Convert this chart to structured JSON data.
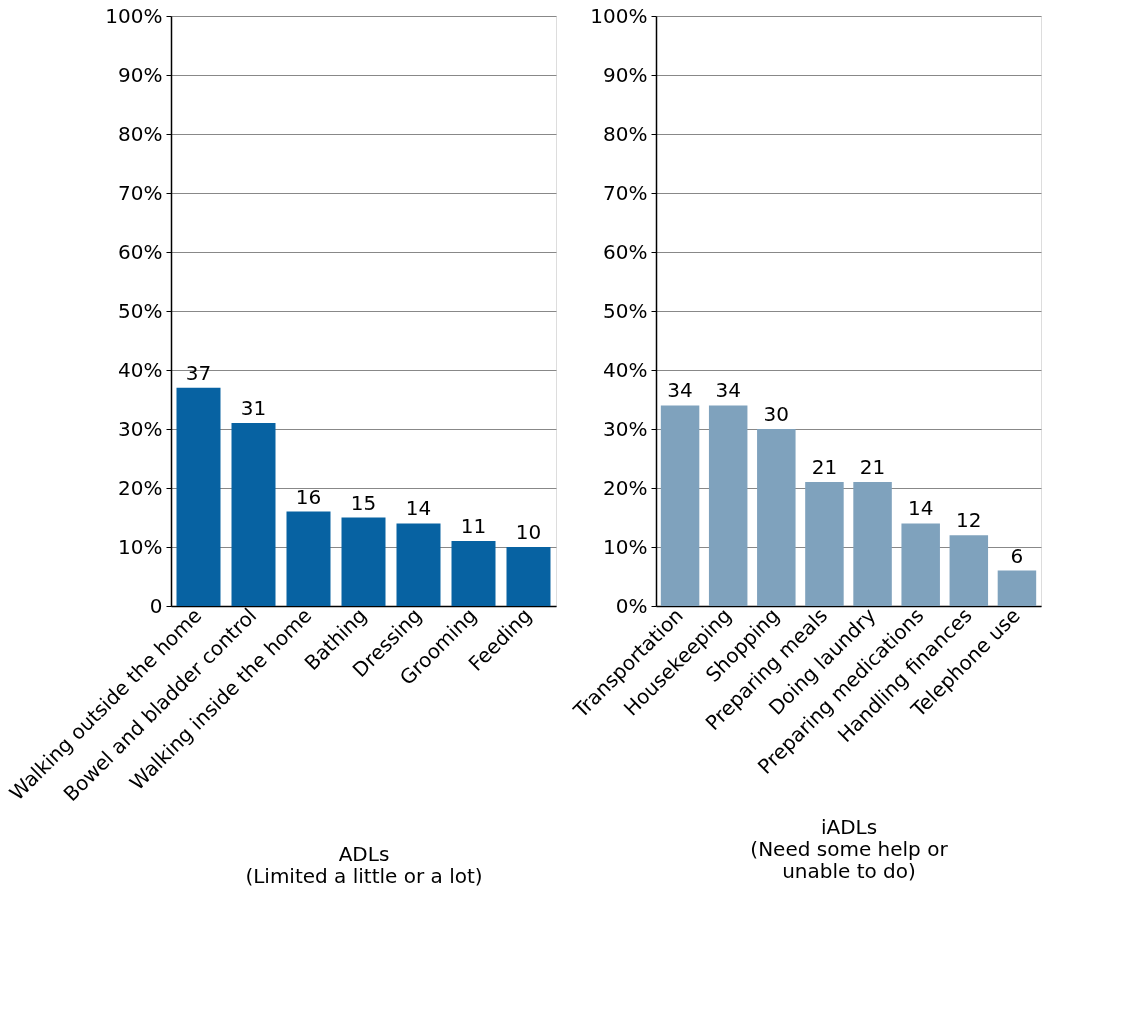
{
  "chart_data": [
    {
      "type": "bar",
      "xlabel": "ADLs\n(Limited a little or a lot)",
      "categories": [
        "Walking outside the home",
        "Bowel and bladder control",
        "Walking inside the home",
        "Bathing",
        "Dressing",
        "Grooming",
        "Feeding"
      ],
      "values": [
        37,
        31,
        16,
        15,
        14,
        11,
        10
      ],
      "color": "#0762a2",
      "ylim": [
        0,
        100
      ],
      "yticks": [
        {
          "value": 0,
          "label": "0"
        },
        {
          "value": 10,
          "label": "10%"
        },
        {
          "value": 20,
          "label": "20%"
        },
        {
          "value": 30,
          "label": "30%"
        },
        {
          "value": 40,
          "label": "40%"
        },
        {
          "value": 50,
          "label": "50%"
        },
        {
          "value": 60,
          "label": "60%"
        },
        {
          "value": 70,
          "label": "70%"
        },
        {
          "value": 80,
          "label": "80%"
        },
        {
          "value": 90,
          "label": "90%"
        },
        {
          "value": 100,
          "label": "100%"
        }
      ],
      "grid": "y",
      "data_labels": true
    },
    {
      "type": "bar",
      "xlabel": "iADLs\n(Need some help or\nunable to do)",
      "categories": [
        "Transportation",
        "Housekeeping",
        "Shopping",
        "Preparing meals",
        "Doing laundry",
        "Preparing medications",
        "Handling finances",
        "Telephone use"
      ],
      "values": [
        34,
        34,
        30,
        21,
        21,
        14,
        12,
        6
      ],
      "color": "#7fa2bd",
      "ylim": [
        0,
        100
      ],
      "yticks": [
        {
          "value": 0,
          "label": "0%"
        },
        {
          "value": 10,
          "label": "10%"
        },
        {
          "value": 20,
          "label": "20%"
        },
        {
          "value": 30,
          "label": "30%"
        },
        {
          "value": 40,
          "label": "40%"
        },
        {
          "value": 50,
          "label": "50%"
        },
        {
          "value": 60,
          "label": "60%"
        },
        {
          "value": 70,
          "label": "70%"
        },
        {
          "value": 80,
          "label": "80%"
        },
        {
          "value": 90,
          "label": "90%"
        },
        {
          "value": 100,
          "label": "100%"
        }
      ],
      "grid": "y",
      "data_labels": true
    }
  ]
}
